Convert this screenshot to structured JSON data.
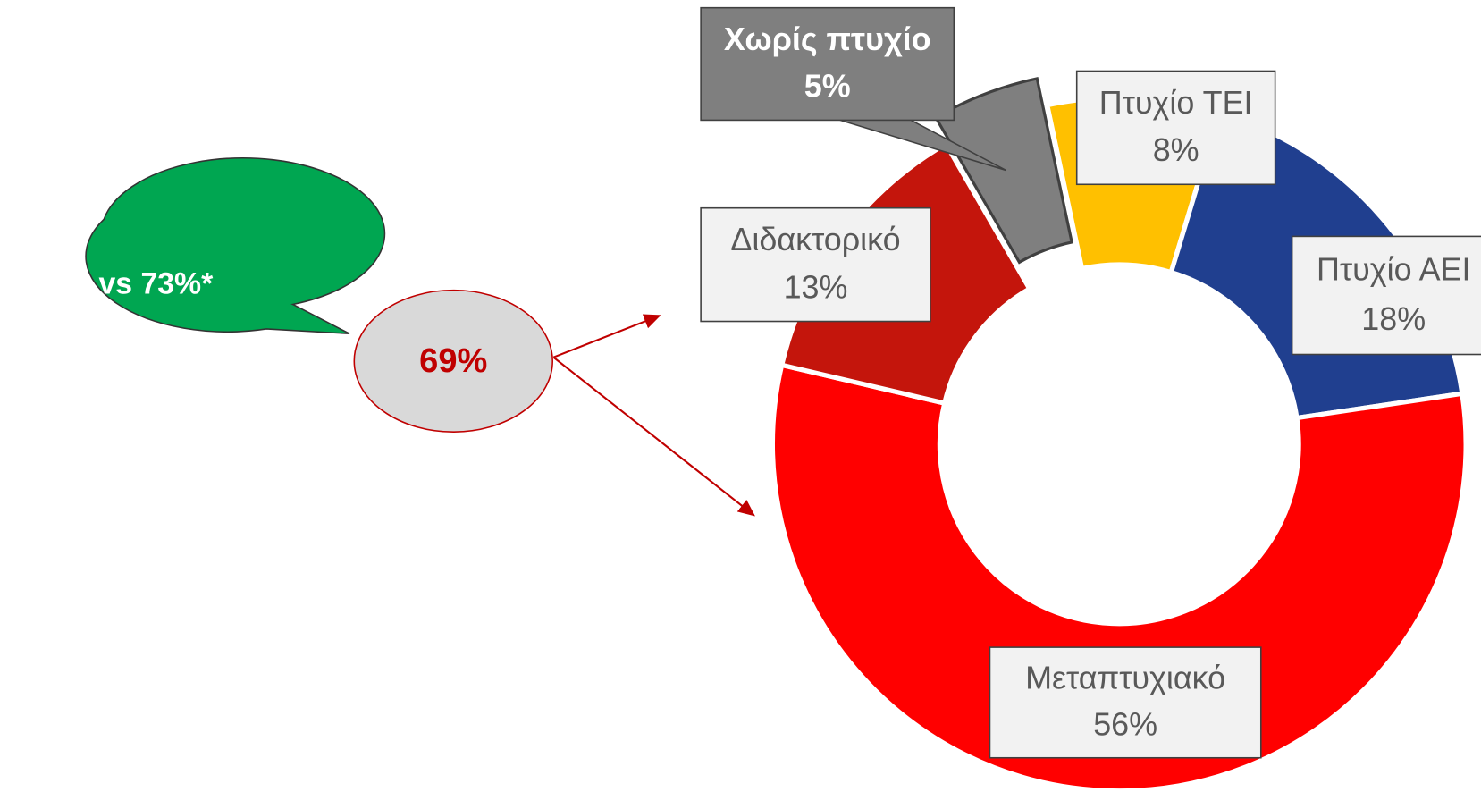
{
  "chart_data": {
    "type": "donut",
    "categories": [
      "Πτυχίο ΤΕΙ",
      "Πτυχίο ΑΕΙ",
      "Μεταπτυχιακό",
      "Διδακτορικό",
      "Χωρίς πτυχίο"
    ],
    "values": [
      8,
      18,
      56,
      13,
      5
    ],
    "value_labels": [
      "8%",
      "18%",
      "56%",
      "13%",
      "5%"
    ],
    "colors": [
      "#ffc000",
      "#203f8f",
      "#ff0000",
      "#c4150c",
      "#7f7f7f"
    ],
    "annotations": [
      "vs 73%*",
      "69%"
    ]
  }
}
